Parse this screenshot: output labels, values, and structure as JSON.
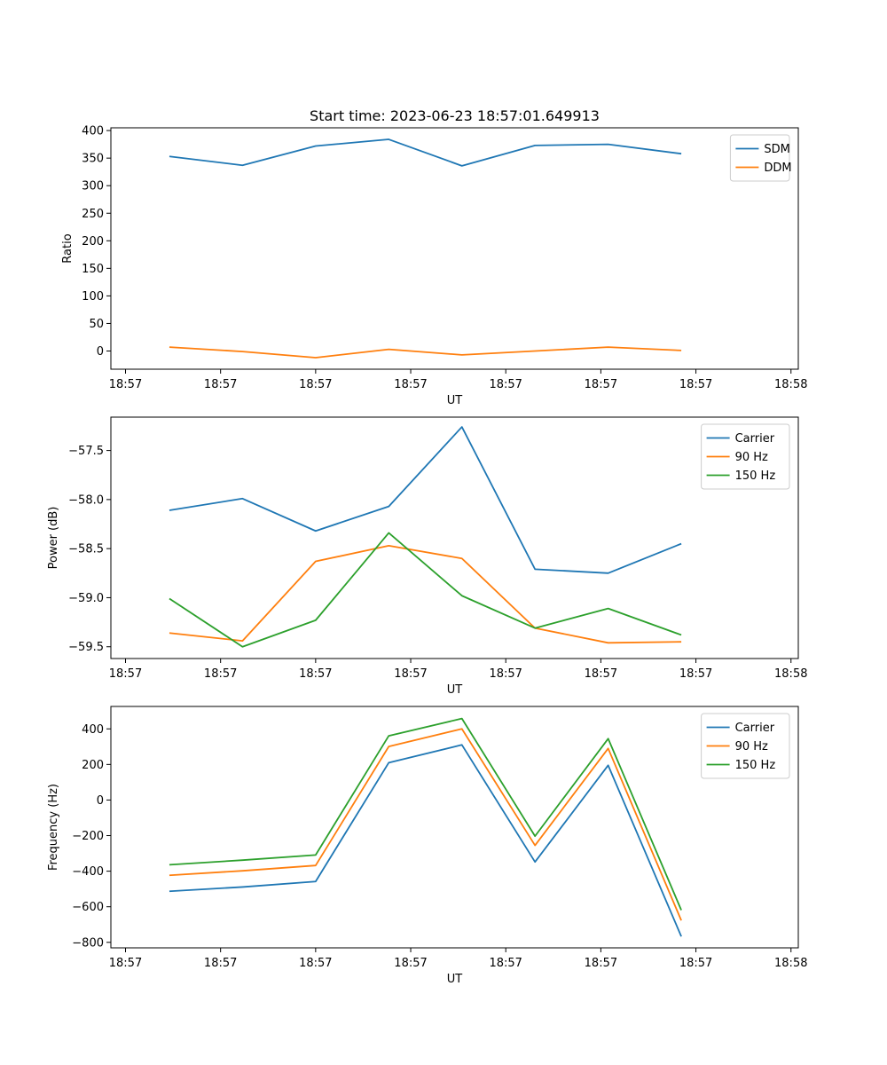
{
  "figure": {
    "title": "Start time: 2023-06-23 18:57:01.649913"
  },
  "chart_data": [
    {
      "type": "line",
      "title": "Start time: 2023-06-23 18:57:01.649913",
      "xlabel": "UT",
      "ylabel": "Ratio",
      "x_tick_labels": [
        "18:57",
        "18:57",
        "18:57",
        "18:57",
        "18:57",
        "18:57",
        "18:57"
      ],
      "x_last_tick_label": "18:58",
      "x": [
        1,
        2,
        3,
        4,
        5,
        6,
        7,
        8
      ],
      "xlim": [
        0.2,
        9.6
      ],
      "ylim": [
        -33,
        405
      ],
      "yticks": [
        0,
        50,
        100,
        150,
        200,
        250,
        300,
        350,
        400
      ],
      "legend": "top-right",
      "grid": false,
      "series": [
        {
          "name": "SDM",
          "color": "#1f77b4",
          "values": [
            353,
            337,
            372,
            384,
            336,
            373,
            375,
            358
          ]
        },
        {
          "name": "DDM",
          "color": "#ff7f0e",
          "values": [
            7,
            -1,
            -12,
            3,
            -7,
            0,
            7,
            1
          ]
        }
      ]
    },
    {
      "type": "line",
      "xlabel": "UT",
      "ylabel": "Power (dB)",
      "x_tick_labels": [
        "18:57",
        "18:57",
        "18:57",
        "18:57",
        "18:57",
        "18:57",
        "18:57"
      ],
      "x_last_tick_label": "18:58",
      "x": [
        1,
        2,
        3,
        4,
        5,
        6,
        7,
        8
      ],
      "xlim": [
        0.2,
        9.6
      ],
      "ylim": [
        -59.62,
        -57.16
      ],
      "yticks": [
        -59.5,
        -59.0,
        -58.5,
        -58.0,
        -57.5
      ],
      "ytick_labels": [
        "−59.5",
        "−59.0",
        "−58.5",
        "−58.0",
        "−57.5"
      ],
      "legend": "top-right",
      "grid": false,
      "series": [
        {
          "name": "Carrier",
          "color": "#1f77b4",
          "values": [
            -58.11,
            -57.99,
            -58.32,
            -58.07,
            -57.26,
            -58.71,
            -58.75,
            -58.45
          ]
        },
        {
          "name": "90 Hz",
          "color": "#ff7f0e",
          "values": [
            -59.36,
            -59.44,
            -58.63,
            -58.47,
            -58.6,
            -59.31,
            -59.46,
            -59.45
          ]
        },
        {
          "name": "150 Hz",
          "color": "#2ca02c",
          "values": [
            -59.01,
            -59.5,
            -59.23,
            -58.34,
            -58.98,
            -59.31,
            -59.11,
            -59.38
          ]
        }
      ]
    },
    {
      "type": "line",
      "xlabel": "UT",
      "ylabel": "Frequency (Hz)",
      "x_tick_labels": [
        "18:57",
        "18:57",
        "18:57",
        "18:57",
        "18:57",
        "18:57",
        "18:57"
      ],
      "x_last_tick_label": "18:58",
      "x": [
        1,
        2,
        3,
        4,
        5,
        6,
        7,
        8
      ],
      "xlim": [
        0.2,
        9.6
      ],
      "ylim": [
        -831,
        526
      ],
      "yticks": [
        -800,
        -600,
        -400,
        -200,
        0,
        200,
        400
      ],
      "ytick_labels": [
        "−800",
        "−600",
        "−400",
        "−200",
        "0",
        "200",
        "400"
      ],
      "legend": "top-right",
      "grid": false,
      "series": [
        {
          "name": "Carrier",
          "color": "#1f77b4",
          "values": [
            -513,
            -489,
            -458,
            210,
            310,
            -348,
            195,
            -767
          ]
        },
        {
          "name": "90 Hz",
          "color": "#ff7f0e",
          "values": [
            -423,
            -398,
            -368,
            301,
            400,
            -255,
            290,
            -677
          ]
        },
        {
          "name": "150 Hz",
          "color": "#2ca02c",
          "values": [
            -364,
            -338,
            -309,
            361,
            458,
            -203,
            345,
            -619
          ]
        }
      ]
    }
  ]
}
